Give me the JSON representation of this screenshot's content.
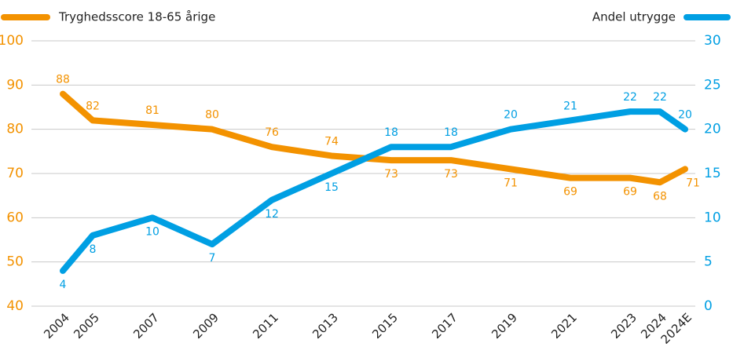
{
  "chart_data": {
    "type": "line",
    "categories": [
      "2004",
      "2005",
      "2007",
      "2009",
      "2011",
      "2013",
      "2015",
      "2017",
      "2019",
      "2021",
      "2023",
      "2024",
      "2024E"
    ],
    "series": [
      {
        "name": "Tryghedsscore 18-65 årige",
        "color": "#f39200",
        "values": [
          88,
          82,
          81,
          80,
          76,
          74,
          73,
          73,
          71,
          69,
          69,
          68,
          71
        ]
      },
      {
        "name": "Andel utrygge",
        "color": "#009fe3",
        "axis": "y2",
        "values": [
          4,
          8,
          10,
          7,
          12,
          15,
          18,
          18,
          20,
          21,
          22,
          22,
          20
        ]
      }
    ],
    "ylim": [
      40,
      100
    ],
    "yticks": [
      40,
      50,
      60,
      70,
      80,
      90,
      100
    ],
    "y2lim": [
      0,
      30
    ],
    "y2ticks": [
      0,
      5,
      10,
      15,
      20,
      25,
      30
    ],
    "grid": true
  }
}
